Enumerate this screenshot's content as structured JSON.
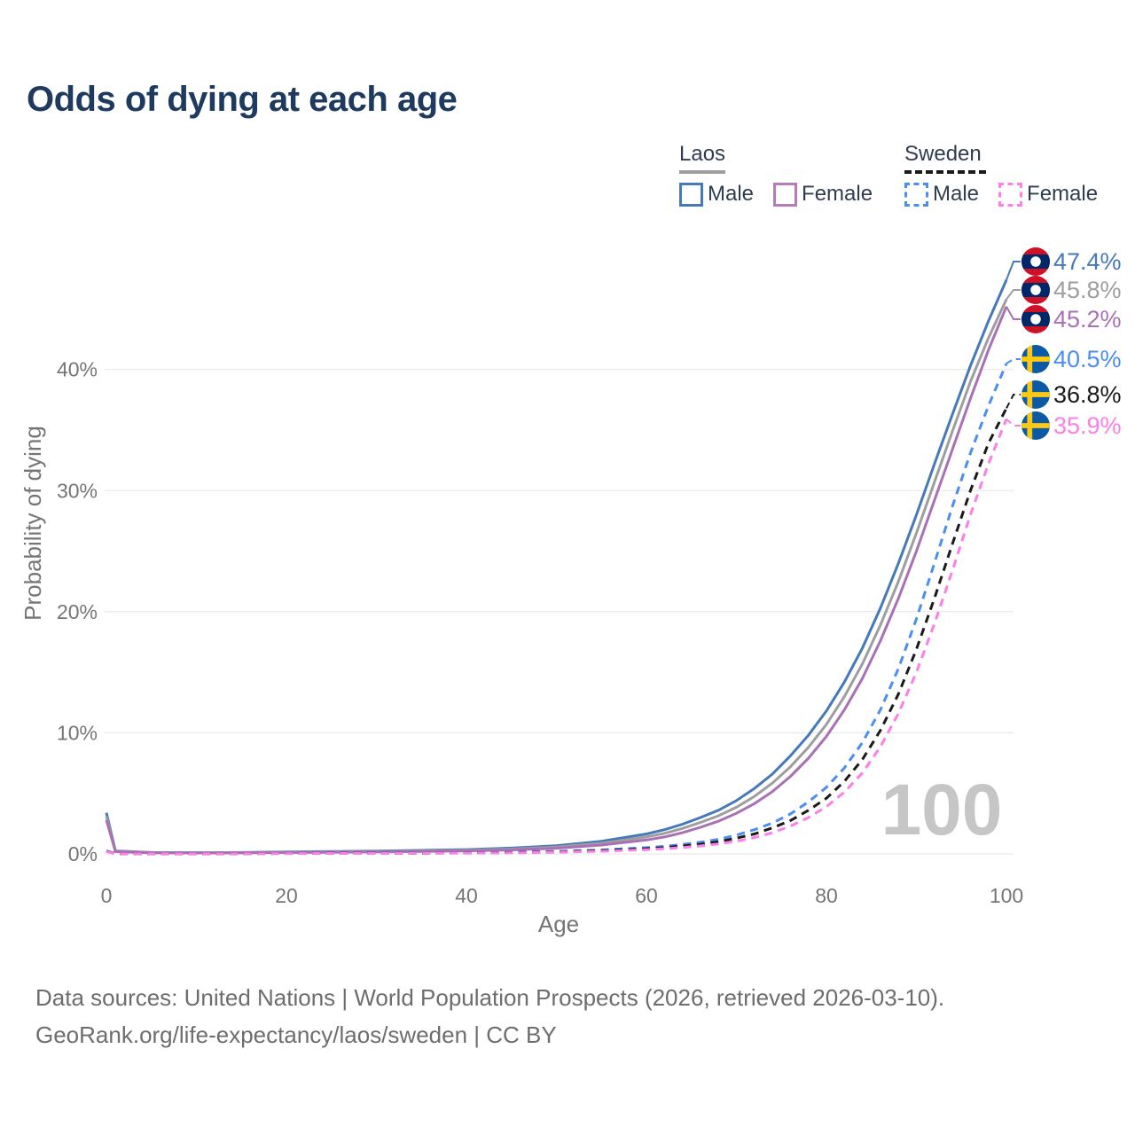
{
  "title": "Odds of dying at each age",
  "legend": {
    "groups": [
      {
        "name": "Laos",
        "line_style": "solid",
        "underline_color": "#9e9e9e",
        "items": [
          {
            "label": "Male",
            "color": "#4579b9"
          },
          {
            "label": "Female",
            "color": "#b47cba"
          }
        ]
      },
      {
        "name": "Sweden",
        "line_style": "dashed",
        "underline_color": "#1a1a1a",
        "items": [
          {
            "label": "Male",
            "color": "#4b8ef2"
          },
          {
            "label": "Female",
            "color": "#fc7ee6"
          }
        ]
      }
    ]
  },
  "chart_data": {
    "type": "line",
    "title": "Odds of dying at each age",
    "xlabel": "Age",
    "ylabel": "Probability of dying",
    "xlim": [
      0,
      100
    ],
    "ylim": [
      0,
      48
    ],
    "grid": true,
    "legend_position": "top-right",
    "watermark": "100",
    "x_ticks": [
      "0",
      "20",
      "40",
      "60",
      "80",
      "100"
    ],
    "y_ticks": [
      {
        "value": 0,
        "label": "0%"
      },
      {
        "value": 10,
        "label": "10%"
      },
      {
        "value": 20,
        "label": "20%"
      },
      {
        "value": 30,
        "label": "30%"
      },
      {
        "value": 40,
        "label": "40%"
      }
    ],
    "series": [
      {
        "id": "laos-male",
        "name": "Laos Male",
        "country": "Laos",
        "sex": "Male",
        "color": "#4579b9",
        "dashed": false,
        "flag": "laos",
        "end_label": "47.4%",
        "points": [
          [
            0,
            3.4
          ],
          [
            1,
            0.25
          ],
          [
            5,
            0.12
          ],
          [
            10,
            0.1
          ],
          [
            15,
            0.12
          ],
          [
            20,
            0.17
          ],
          [
            25,
            0.2
          ],
          [
            30,
            0.24
          ],
          [
            35,
            0.29
          ],
          [
            40,
            0.36
          ],
          [
            45,
            0.48
          ],
          [
            50,
            0.68
          ],
          [
            55,
            1.05
          ],
          [
            60,
            1.65
          ],
          [
            62,
            2.0
          ],
          [
            64,
            2.45
          ],
          [
            66,
            3.0
          ],
          [
            68,
            3.6
          ],
          [
            70,
            4.4
          ],
          [
            72,
            5.4
          ],
          [
            74,
            6.6
          ],
          [
            76,
            8.1
          ],
          [
            78,
            9.8
          ],
          [
            80,
            11.8
          ],
          [
            82,
            14.2
          ],
          [
            84,
            17.0
          ],
          [
            86,
            20.3
          ],
          [
            88,
            24.0
          ],
          [
            90,
            28.0
          ],
          [
            92,
            32.2
          ],
          [
            94,
            36.3
          ],
          [
            96,
            40.3
          ],
          [
            98,
            44.0
          ],
          [
            100,
            47.4
          ]
        ]
      },
      {
        "id": "laos-both",
        "name": "Laos",
        "country": "Laos",
        "sex": "Both",
        "color": "#9e9e9e",
        "dashed": false,
        "flag": "laos",
        "end_label": "45.8%",
        "points": [
          [
            0,
            3.1
          ],
          [
            1,
            0.22
          ],
          [
            5,
            0.1
          ],
          [
            10,
            0.09
          ],
          [
            15,
            0.1
          ],
          [
            20,
            0.14
          ],
          [
            25,
            0.17
          ],
          [
            30,
            0.2
          ],
          [
            35,
            0.24
          ],
          [
            40,
            0.3
          ],
          [
            45,
            0.4
          ],
          [
            50,
            0.57
          ],
          [
            55,
            0.88
          ],
          [
            60,
            1.4
          ],
          [
            62,
            1.7
          ],
          [
            64,
            2.1
          ],
          [
            66,
            2.6
          ],
          [
            68,
            3.15
          ],
          [
            70,
            3.85
          ],
          [
            72,
            4.75
          ],
          [
            74,
            5.85
          ],
          [
            76,
            7.2
          ],
          [
            78,
            8.8
          ],
          [
            80,
            10.7
          ],
          [
            82,
            13.0
          ],
          [
            84,
            15.7
          ],
          [
            86,
            18.9
          ],
          [
            88,
            22.5
          ],
          [
            90,
            26.5
          ],
          [
            92,
            30.7
          ],
          [
            94,
            34.9
          ],
          [
            96,
            39.0
          ],
          [
            98,
            42.6
          ],
          [
            100,
            45.8
          ]
        ]
      },
      {
        "id": "laos-female",
        "name": "Laos Female",
        "country": "Laos",
        "sex": "Female",
        "color": "#aa70b6",
        "dashed": false,
        "flag": "laos",
        "end_label": "45.2%",
        "points": [
          [
            0,
            2.8
          ],
          [
            1,
            0.19
          ],
          [
            5,
            0.09
          ],
          [
            10,
            0.08
          ],
          [
            15,
            0.09
          ],
          [
            20,
            0.12
          ],
          [
            25,
            0.14
          ],
          [
            30,
            0.16
          ],
          [
            35,
            0.2
          ],
          [
            40,
            0.25
          ],
          [
            45,
            0.33
          ],
          [
            50,
            0.47
          ],
          [
            55,
            0.73
          ],
          [
            60,
            1.15
          ],
          [
            62,
            1.4
          ],
          [
            64,
            1.75
          ],
          [
            66,
            2.2
          ],
          [
            68,
            2.7
          ],
          [
            70,
            3.35
          ],
          [
            72,
            4.15
          ],
          [
            74,
            5.15
          ],
          [
            76,
            6.4
          ],
          [
            78,
            7.9
          ],
          [
            80,
            9.7
          ],
          [
            82,
            11.9
          ],
          [
            84,
            14.5
          ],
          [
            86,
            17.6
          ],
          [
            88,
            21.1
          ],
          [
            90,
            25.0
          ],
          [
            92,
            29.2
          ],
          [
            94,
            33.4
          ],
          [
            96,
            37.6
          ],
          [
            98,
            41.6
          ],
          [
            100,
            45.2
          ]
        ]
      },
      {
        "id": "sweden-male",
        "name": "Sweden Male",
        "country": "Sweden",
        "sex": "Male",
        "color": "#4b8ef2",
        "dashed": true,
        "flag": "sweden",
        "end_label": "40.5%",
        "points": [
          [
            0,
            0.25
          ],
          [
            1,
            0.02
          ],
          [
            5,
            0.01
          ],
          [
            10,
            0.01
          ],
          [
            15,
            0.02
          ],
          [
            20,
            0.05
          ],
          [
            25,
            0.06
          ],
          [
            30,
            0.07
          ],
          [
            35,
            0.08
          ],
          [
            40,
            0.1
          ],
          [
            45,
            0.14
          ],
          [
            50,
            0.21
          ],
          [
            55,
            0.33
          ],
          [
            60,
            0.52
          ],
          [
            62,
            0.63
          ],
          [
            64,
            0.78
          ],
          [
            66,
            0.97
          ],
          [
            68,
            1.2
          ],
          [
            70,
            1.55
          ],
          [
            72,
            2.0
          ],
          [
            74,
            2.55
          ],
          [
            76,
            3.3
          ],
          [
            78,
            4.3
          ],
          [
            80,
            5.5
          ],
          [
            82,
            7.1
          ],
          [
            84,
            9.2
          ],
          [
            86,
            11.9
          ],
          [
            88,
            15.3
          ],
          [
            90,
            19.4
          ],
          [
            92,
            24.0
          ],
          [
            94,
            28.7
          ],
          [
            96,
            33.1
          ],
          [
            98,
            37.0
          ],
          [
            100,
            40.5
          ]
        ]
      },
      {
        "id": "sweden-both",
        "name": "Sweden",
        "country": "Sweden",
        "sex": "Both",
        "color": "#1a1a1a",
        "dashed": true,
        "flag": "sweden",
        "end_label": "36.8%",
        "points": [
          [
            0,
            0.22
          ],
          [
            1,
            0.02
          ],
          [
            5,
            0.01
          ],
          [
            10,
            0.01
          ],
          [
            15,
            0.02
          ],
          [
            20,
            0.04
          ],
          [
            25,
            0.05
          ],
          [
            30,
            0.05
          ],
          [
            35,
            0.06
          ],
          [
            40,
            0.08
          ],
          [
            45,
            0.11
          ],
          [
            50,
            0.17
          ],
          [
            55,
            0.27
          ],
          [
            60,
            0.43
          ],
          [
            62,
            0.52
          ],
          [
            64,
            0.65
          ],
          [
            66,
            0.8
          ],
          [
            68,
            1.0
          ],
          [
            70,
            1.3
          ],
          [
            72,
            1.65
          ],
          [
            74,
            2.15
          ],
          [
            76,
            2.75
          ],
          [
            78,
            3.6
          ],
          [
            80,
            4.6
          ],
          [
            82,
            6.0
          ],
          [
            84,
            7.8
          ],
          [
            86,
            10.2
          ],
          [
            88,
            13.2
          ],
          [
            90,
            16.9
          ],
          [
            92,
            21.1
          ],
          [
            94,
            25.6
          ],
          [
            96,
            30.0
          ],
          [
            98,
            33.9
          ],
          [
            100,
            36.8
          ]
        ]
      },
      {
        "id": "sweden-female",
        "name": "Sweden Female",
        "country": "Sweden",
        "sex": "Female",
        "color": "#fc7ee6",
        "dashed": true,
        "flag": "sweden",
        "end_label": "35.9%",
        "points": [
          [
            0,
            0.2
          ],
          [
            1,
            0.015
          ],
          [
            5,
            0.01
          ],
          [
            10,
            0.01
          ],
          [
            15,
            0.015
          ],
          [
            20,
            0.03
          ],
          [
            25,
            0.035
          ],
          [
            30,
            0.04
          ],
          [
            35,
            0.05
          ],
          [
            40,
            0.065
          ],
          [
            45,
            0.09
          ],
          [
            50,
            0.14
          ],
          [
            55,
            0.22
          ],
          [
            60,
            0.35
          ],
          [
            62,
            0.43
          ],
          [
            64,
            0.53
          ],
          [
            66,
            0.66
          ],
          [
            68,
            0.83
          ],
          [
            70,
            1.05
          ],
          [
            72,
            1.35
          ],
          [
            74,
            1.75
          ],
          [
            76,
            2.3
          ],
          [
            78,
            3.0
          ],
          [
            80,
            3.9
          ],
          [
            82,
            5.1
          ],
          [
            84,
            6.7
          ],
          [
            86,
            8.85
          ],
          [
            88,
            11.6
          ],
          [
            90,
            15.0
          ],
          [
            92,
            19.0
          ],
          [
            94,
            23.4
          ],
          [
            96,
            28.0
          ],
          [
            98,
            32.2
          ],
          [
            100,
            35.9
          ]
        ]
      }
    ],
    "flag_colors": {
      "laos": {
        "red": "#ce1126",
        "blue": "#002868",
        "circle": "#ffffff"
      },
      "sweden": {
        "field": "#0b5aa5",
        "cross": "#fdc913"
      }
    }
  },
  "footer": {
    "line1": "Data sources: United Nations | World Population Prospects (2026, retrieved 2026-03-10).",
    "line2": "GeoRank.org/life-expectancy/laos/sweden | CC BY"
  }
}
